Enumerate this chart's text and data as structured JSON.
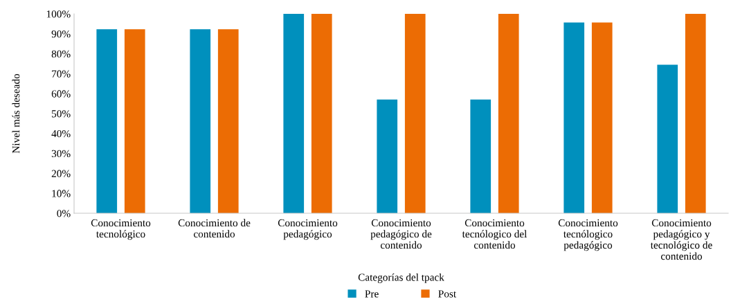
{
  "chart_data": {
    "type": "bar",
    "xlabel": "Categorías del tpack",
    "ylabel": "Nivel más deseado",
    "categories": [
      "Conocimiento\ntecnológico",
      "Conocimiento de\ncontenido",
      "Conocimiento\npedagógico",
      "Conocimiento\npedagógico de\ncontenido",
      "Conocimiento\ntecnólogico del\ncontenido",
      "Conocimiento\ntecnólogico\npedagógico",
      "Conocimiento\npedagógico y\ntecnológico de\ncontenido"
    ],
    "series": [
      {
        "name": "Pre",
        "color": "#0090bd",
        "values": [
          92.3,
          92.3,
          100,
          57,
          57,
          95.7,
          74.5
        ]
      },
      {
        "name": "Post",
        "color": "#ec6c04",
        "values": [
          92.3,
          92.3,
          100,
          100,
          100,
          95.7,
          100
        ]
      }
    ],
    "ylim": [
      0,
      100
    ],
    "yticks": [
      {
        "value": 0,
        "label": "0%"
      },
      {
        "value": 10,
        "label": "10%"
      },
      {
        "value": 20,
        "label": "20%"
      },
      {
        "value": 30,
        "label": "30%"
      },
      {
        "value": 40,
        "label": "40%"
      },
      {
        "value": 50,
        "label": "50%"
      },
      {
        "value": 60,
        "label": "60%"
      },
      {
        "value": 70,
        "label": "70%"
      },
      {
        "value": 80,
        "label": "80%"
      },
      {
        "value": 90,
        "label": "90%"
      },
      {
        "value": 100,
        "label": "100%"
      }
    ],
    "legend": "bottom",
    "grid": false
  }
}
